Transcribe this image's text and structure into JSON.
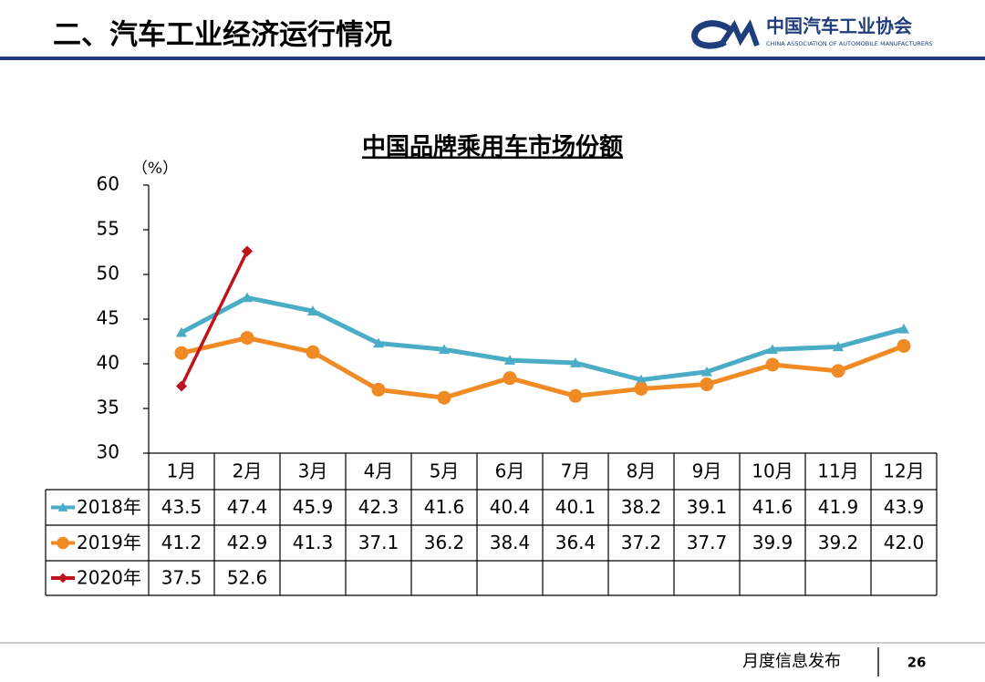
{
  "header": {
    "title": "二、汽车工业经济运行情况",
    "org_name": "中国汽车工业协会",
    "org_name_en": "CHINA ASSOCIATION OF AUTOMOBILE MANUFACTURERS"
  },
  "footer": {
    "label": "月度信息发布",
    "page": "26"
  },
  "chart_data": {
    "type": "line",
    "title": "中国品牌乘用车市场份额",
    "y_label": "（%）",
    "categories": [
      "1月",
      "2月",
      "3月",
      "4月",
      "5月",
      "6月",
      "7月",
      "8月",
      "9月",
      "10月",
      "11月",
      "12月"
    ],
    "ylim": [
      30,
      60
    ],
    "yticks": [
      30,
      35,
      40,
      45,
      50,
      55,
      60
    ],
    "series": [
      {
        "name": "2018年",
        "color": "#4bacc6",
        "marker": "triangle",
        "values": [
          43.5,
          47.4,
          45.9,
          42.3,
          41.6,
          40.4,
          40.1,
          38.2,
          39.1,
          41.6,
          41.9,
          43.9
        ],
        "value_labels": [
          "43.5",
          "47.4",
          "45.9",
          "42.3",
          "41.6",
          "40.4",
          "40.1",
          "38.2",
          "39.1",
          "41.6",
          "41.9",
          "43.9"
        ]
      },
      {
        "name": "2019年",
        "color": "#f08a24",
        "marker": "circle",
        "values": [
          41.2,
          42.9,
          41.3,
          37.1,
          36.2,
          38.4,
          36.4,
          37.2,
          37.7,
          39.9,
          39.2,
          42.0
        ],
        "value_labels": [
          "41.2",
          "42.9",
          "41.3",
          "37.1",
          "36.2",
          "38.4",
          "36.4",
          "37.2",
          "37.7",
          "39.9",
          "39.2",
          "42.0"
        ]
      },
      {
        "name": "2020年",
        "color": "#c0141c",
        "marker": "diamond",
        "values": [
          37.5,
          52.6,
          null,
          null,
          null,
          null,
          null,
          null,
          null,
          null,
          null,
          null
        ],
        "value_labels": [
          "37.5",
          "52.6",
          null,
          null,
          null,
          null,
          null,
          null,
          null,
          null,
          null,
          null
        ]
      }
    ]
  }
}
